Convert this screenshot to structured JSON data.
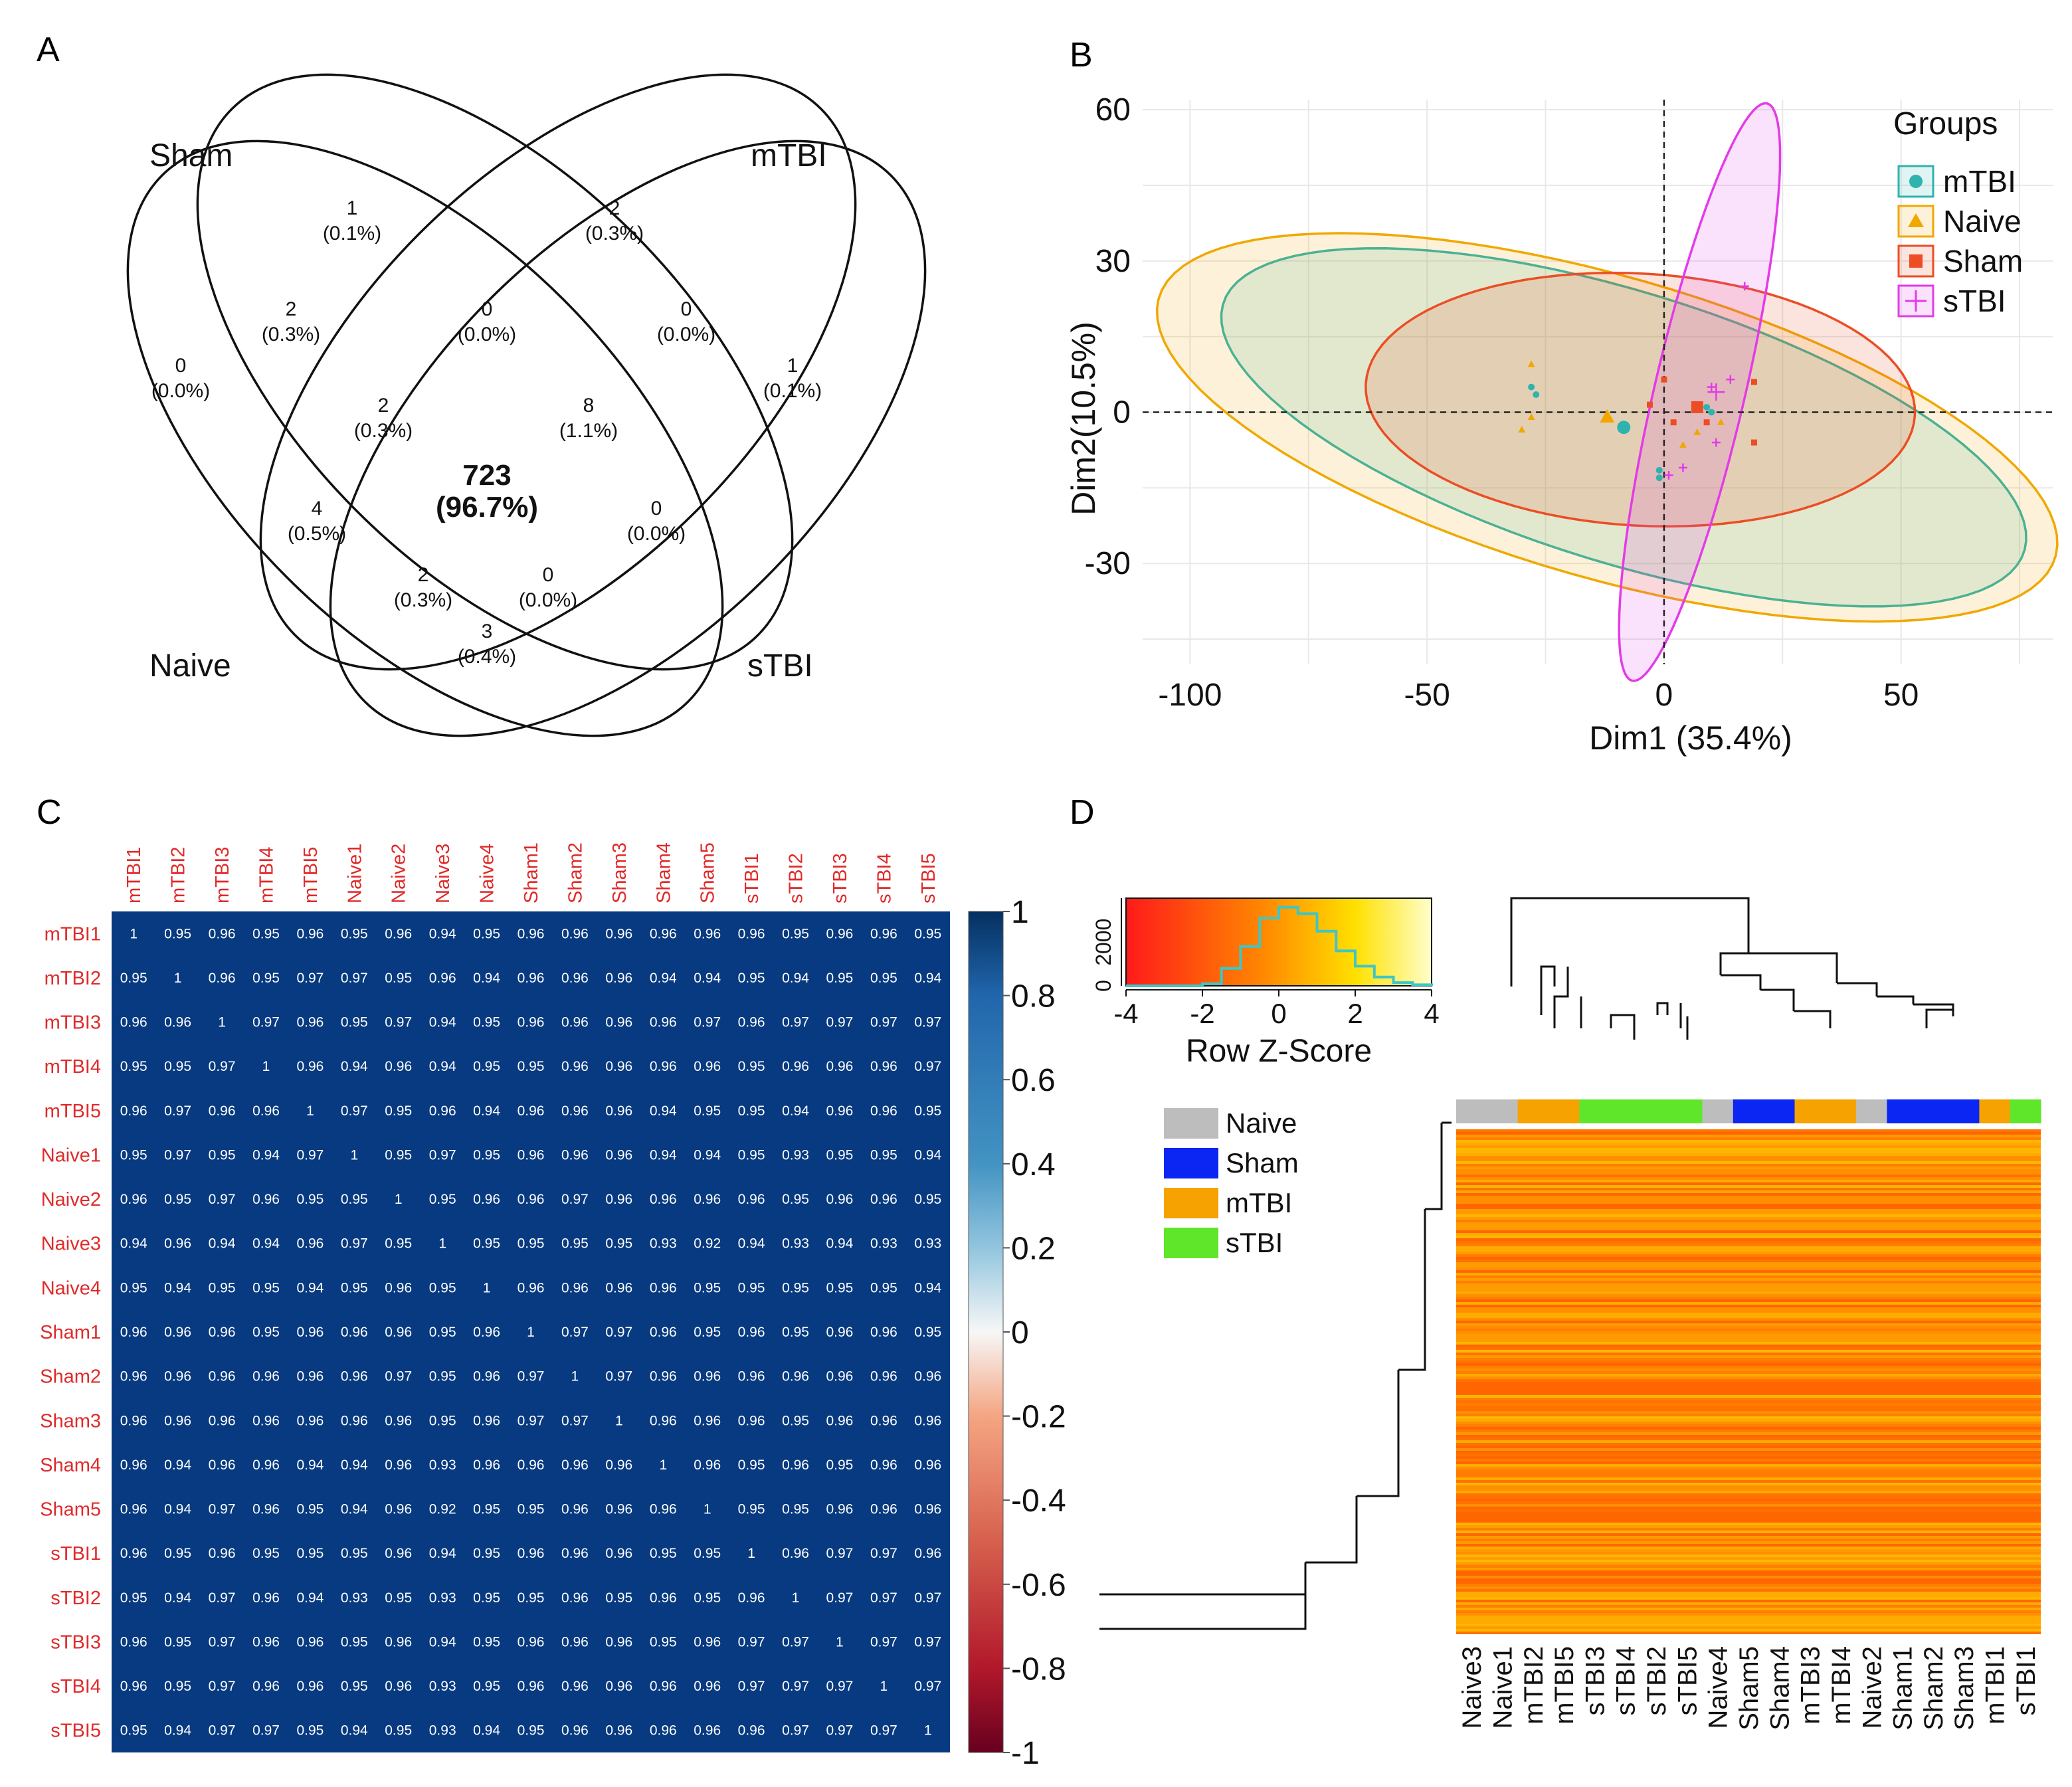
{
  "panel_labels": [
    "A",
    "B",
    "C",
    "D"
  ],
  "chart_data": [
    {
      "type": "venn",
      "panel": "A",
      "sets": [
        "Sham",
        "mTBI",
        "Naive",
        "sTBI"
      ],
      "regions": [
        {
          "id": "naive_only",
          "count": "0",
          "pct": "(0.0%)"
        },
        {
          "id": "sham_only",
          "count": "1",
          "pct": "(0.1%)"
        },
        {
          "id": "mtbi_only",
          "count": "2",
          "pct": "(0.3%)"
        },
        {
          "id": "stbi_only",
          "count": "1",
          "pct": "(0.1%)"
        },
        {
          "id": "naive_sham",
          "count": "2",
          "pct": "(0.3%)"
        },
        {
          "id": "sham_mtbi",
          "count": "0",
          "pct": "(0.0%)"
        },
        {
          "id": "mtbi_stbi",
          "count": "0",
          "pct": "(0.0%)"
        },
        {
          "id": "naive_sham_mtbi",
          "count": "2",
          "pct": "(0.3%)"
        },
        {
          "id": "sham_mtbi_stbi",
          "count": "8",
          "pct": "(1.1%)"
        },
        {
          "id": "naive_mtbi",
          "count": "4",
          "pct": "(0.5%)"
        },
        {
          "id": "sham_stbi",
          "count": "0",
          "pct": "(0.0%)"
        },
        {
          "id": "all",
          "count": "723",
          "pct": "(96.7%)"
        },
        {
          "id": "naive_mtbi_stbi",
          "count": "2",
          "pct": "(0.3%)"
        },
        {
          "id": "naive_sham_stbi",
          "count": "0",
          "pct": "(0.0%)"
        },
        {
          "id": "naive_stbi",
          "count": "3",
          "pct": "(0.4%)"
        }
      ]
    },
    {
      "type": "scatter",
      "panel": "B",
      "title": "",
      "xlabel": "Dim1 (35.4%)",
      "ylabel": "Dim2(10.5%)",
      "xlim": [
        -110,
        82
      ],
      "ylim": [
        -50,
        62
      ],
      "xticks": [
        -100,
        -50,
        0,
        50
      ],
      "yticks": [
        60,
        30,
        0,
        -30
      ],
      "legend_title": "Groups",
      "legend_position": "top-right",
      "series": [
        {
          "name": "mTBI",
          "color": "#2fb3ad",
          "marker": "circle",
          "points": [
            [
              -28,
              5
            ],
            [
              -27,
              3.5
            ],
            [
              -1,
              -11.5
            ],
            [
              -1,
              -13
            ],
            [
              9,
              1
            ],
            [
              10,
              0
            ]
          ],
          "centroid": [
            -8.5,
            -3
          ],
          "ellipse": {
            "cx": -8.5,
            "cy": -3,
            "rx": 88,
            "ry": 27,
            "angle": -16
          }
        },
        {
          "name": "Naive",
          "color": "#f0a800",
          "marker": "triangle",
          "points": [
            [
              -28,
              9.5
            ],
            [
              -30,
              -3.5
            ],
            [
              -28,
              -1
            ],
            [
              4,
              -6.5
            ],
            [
              7,
              -4
            ],
            [
              12,
              -2
            ]
          ],
          "centroid": [
            -12,
            -1
          ],
          "ellipse": {
            "cx": -12,
            "cy": -3,
            "rx": 98,
            "ry": 30,
            "angle": -15
          }
        },
        {
          "name": "Sham",
          "color": "#ec4d24",
          "marker": "square",
          "points": [
            [
              0,
              6.5
            ],
            [
              -3,
              1.5
            ],
            [
              2,
              -2
            ],
            [
              9,
              -2
            ],
            [
              19,
              6
            ],
            [
              19,
              -6
            ]
          ],
          "centroid": [
            7,
            1
          ],
          "ellipse": {
            "cx": -5,
            "cy": 2.5,
            "rx": 58,
            "ry": 25,
            "angle": -3
          }
        },
        {
          "name": "sTBI",
          "color": "#e33be8",
          "marker": "plus",
          "points": [
            [
              17,
              25
            ],
            [
              14,
              6.5
            ],
            [
              10,
              5
            ],
            [
              11,
              -6
            ],
            [
              4,
              -11
            ],
            [
              1,
              -12.5
            ]
          ],
          "centroid": [
            11,
            4
          ],
          "ellipse": {
            "cx": 7.5,
            "cy": 4,
            "rx": 59,
            "ry": 9.5,
            "angle": 76
          }
        }
      ]
    },
    {
      "type": "heatmap",
      "panel": "C",
      "labels": [
        "mTBI1",
        "mTBI2",
        "mTBI3",
        "mTBI4",
        "mTBI5",
        "Naive1",
        "Naive2",
        "Naive3",
        "Naive4",
        "Sham1",
        "Sham2",
        "Sham3",
        "Sham4",
        "Sham5",
        "sTBI1",
        "sTBI2",
        "sTBI3",
        "sTBI4",
        "sTBI5"
      ],
      "matrix": [
        [
          "1",
          "0.95",
          "0.96",
          "0.95",
          "0.96",
          "0.95",
          "0.96",
          "0.94",
          "0.95",
          "0.96",
          "0.96",
          "0.96",
          "0.96",
          "0.96",
          "0.96",
          "0.95",
          "0.96",
          "0.96",
          "0.95"
        ],
        [
          "0.95",
          "1",
          "0.96",
          "0.95",
          "0.97",
          "0.97",
          "0.95",
          "0.96",
          "0.94",
          "0.96",
          "0.96",
          "0.96",
          "0.94",
          "0.94",
          "0.95",
          "0.94",
          "0.95",
          "0.95",
          "0.94"
        ],
        [
          "0.96",
          "0.96",
          "1",
          "0.97",
          "0.96",
          "0.95",
          "0.97",
          "0.94",
          "0.95",
          "0.96",
          "0.96",
          "0.96",
          "0.96",
          "0.97",
          "0.96",
          "0.97",
          "0.97",
          "0.97",
          "0.97"
        ],
        [
          "0.95",
          "0.95",
          "0.97",
          "1",
          "0.96",
          "0.94",
          "0.96",
          "0.94",
          "0.95",
          "0.95",
          "0.96",
          "0.96",
          "0.96",
          "0.96",
          "0.95",
          "0.96",
          "0.96",
          "0.96",
          "0.97"
        ],
        [
          "0.96",
          "0.97",
          "0.96",
          "0.96",
          "1",
          "0.97",
          "0.95",
          "0.96",
          "0.94",
          "0.96",
          "0.96",
          "0.96",
          "0.94",
          "0.95",
          "0.95",
          "0.94",
          "0.96",
          "0.96",
          "0.95"
        ],
        [
          "0.95",
          "0.97",
          "0.95",
          "0.94",
          "0.97",
          "1",
          "0.95",
          "0.97",
          "0.95",
          "0.96",
          "0.96",
          "0.96",
          "0.94",
          "0.94",
          "0.95",
          "0.93",
          "0.95",
          "0.95",
          "0.94"
        ],
        [
          "0.96",
          "0.95",
          "0.97",
          "0.96",
          "0.95",
          "0.95",
          "1",
          "0.95",
          "0.96",
          "0.96",
          "0.97",
          "0.96",
          "0.96",
          "0.96",
          "0.96",
          "0.95",
          "0.96",
          "0.96",
          "0.95"
        ],
        [
          "0.94",
          "0.96",
          "0.94",
          "0.94",
          "0.96",
          "0.97",
          "0.95",
          "1",
          "0.95",
          "0.95",
          "0.95",
          "0.95",
          "0.93",
          "0.92",
          "0.94",
          "0.93",
          "0.94",
          "0.93",
          "0.93"
        ],
        [
          "0.95",
          "0.94",
          "0.95",
          "0.95",
          "0.94",
          "0.95",
          "0.96",
          "0.95",
          "1",
          "0.96",
          "0.96",
          "0.96",
          "0.96",
          "0.95",
          "0.95",
          "0.95",
          "0.95",
          "0.95",
          "0.94"
        ],
        [
          "0.96",
          "0.96",
          "0.96",
          "0.95",
          "0.96",
          "0.96",
          "0.96",
          "0.95",
          "0.96",
          "1",
          "0.97",
          "0.97",
          "0.96",
          "0.95",
          "0.96",
          "0.95",
          "0.96",
          "0.96",
          "0.95"
        ],
        [
          "0.96",
          "0.96",
          "0.96",
          "0.96",
          "0.96",
          "0.96",
          "0.97",
          "0.95",
          "0.96",
          "0.97",
          "1",
          "0.97",
          "0.96",
          "0.96",
          "0.96",
          "0.96",
          "0.96",
          "0.96",
          "0.96"
        ],
        [
          "0.96",
          "0.96",
          "0.96",
          "0.96",
          "0.96",
          "0.96",
          "0.96",
          "0.95",
          "0.96",
          "0.97",
          "0.97",
          "1",
          "0.96",
          "0.96",
          "0.96",
          "0.95",
          "0.96",
          "0.96",
          "0.96"
        ],
        [
          "0.96",
          "0.94",
          "0.96",
          "0.96",
          "0.94",
          "0.94",
          "0.96",
          "0.93",
          "0.96",
          "0.96",
          "0.96",
          "0.96",
          "1",
          "0.96",
          "0.95",
          "0.96",
          "0.95",
          "0.96",
          "0.96"
        ],
        [
          "0.96",
          "0.94",
          "0.97",
          "0.96",
          "0.95",
          "0.94",
          "0.96",
          "0.92",
          "0.95",
          "0.95",
          "0.96",
          "0.96",
          "0.96",
          "1",
          "0.95",
          "0.95",
          "0.96",
          "0.96",
          "0.96"
        ],
        [
          "0.96",
          "0.95",
          "0.96",
          "0.95",
          "0.95",
          "0.95",
          "0.96",
          "0.94",
          "0.95",
          "0.96",
          "0.96",
          "0.96",
          "0.95",
          "0.95",
          "1",
          "0.96",
          "0.97",
          "0.97",
          "0.96"
        ],
        [
          "0.95",
          "0.94",
          "0.97",
          "0.96",
          "0.94",
          "0.93",
          "0.95",
          "0.93",
          "0.95",
          "0.95",
          "0.96",
          "0.95",
          "0.96",
          "0.95",
          "0.96",
          "1",
          "0.97",
          "0.97",
          "0.97"
        ],
        [
          "0.96",
          "0.95",
          "0.97",
          "0.96",
          "0.96",
          "0.95",
          "0.96",
          "0.94",
          "0.95",
          "0.96",
          "0.96",
          "0.96",
          "0.95",
          "0.96",
          "0.97",
          "0.97",
          "1",
          "0.97",
          "0.97"
        ],
        [
          "0.96",
          "0.95",
          "0.97",
          "0.96",
          "0.96",
          "0.95",
          "0.96",
          "0.93",
          "0.95",
          "0.96",
          "0.96",
          "0.96",
          "0.96",
          "0.96",
          "0.97",
          "0.97",
          "0.97",
          "1",
          "0.97"
        ],
        [
          "0.95",
          "0.94",
          "0.97",
          "0.97",
          "0.95",
          "0.94",
          "0.95",
          "0.93",
          "0.94",
          "0.95",
          "0.96",
          "0.96",
          "0.96",
          "0.96",
          "0.96",
          "0.97",
          "0.97",
          "0.97",
          "1"
        ]
      ],
      "colorbar_ticks": [
        "1",
        "0.8",
        "0.6",
        "0.4",
        "0.2",
        "0",
        "-0.2",
        "-0.4",
        "-0.6",
        "-0.8",
        "-1"
      ],
      "cell_color": "#073a80",
      "label_color": "#e02a2a"
    },
    {
      "type": "heatmap",
      "panel": "D",
      "columns": [
        "Naive3",
        "Naive1",
        "mTBI2",
        "mTBI5",
        "sTBI3",
        "sTBI4",
        "sTBI2",
        "sTBI5",
        "Naive4",
        "Sham5",
        "Sham4",
        "mTBI3",
        "mTBI4",
        "Naive2",
        "Sham1",
        "Sham2",
        "Sham3",
        "mTBI1",
        "sTBI1"
      ],
      "column_groups": [
        "Naive",
        "Naive",
        "mTBI",
        "mTBI",
        "sTBI",
        "sTBI",
        "sTBI",
        "sTBI",
        "Naive",
        "Sham",
        "Sham",
        "mTBI",
        "mTBI",
        "Naive",
        "Sham",
        "Sham",
        "Sham",
        "mTBI",
        "sTBI"
      ],
      "legend": [
        {
          "name": "Naive",
          "color": "#bdbdbd"
        },
        {
          "name": "Sham",
          "color": "#0b26f2"
        },
        {
          "name": "mTBI",
          "color": "#f6a200"
        },
        {
          "name": "sTBI",
          "color": "#5fe62b"
        }
      ],
      "key_title": "Row Z-Score",
      "key_x_ticks": [
        "-4",
        "-2",
        "0",
        "2",
        "4"
      ],
      "key_y_ticks": [
        "0",
        "2000"
      ],
      "key_hist_x": [
        -4,
        -3.5,
        -3,
        -2.5,
        -2,
        -1.5,
        -1,
        -0.5,
        0,
        0.5,
        1,
        1.5,
        2,
        2.5,
        3,
        3.5,
        4
      ],
      "key_hist_counts": [
        0,
        0,
        0,
        0,
        100,
        800,
        1800,
        3100,
        3600,
        3300,
        2500,
        1600,
        900,
        400,
        150,
        50,
        0
      ]
    }
  ]
}
